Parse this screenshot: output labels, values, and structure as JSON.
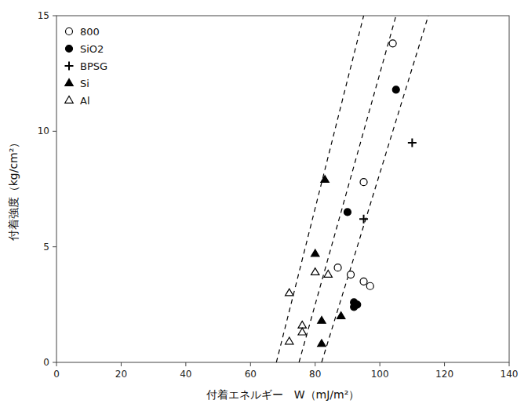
{
  "chart_data": {
    "type": "scatter",
    "xlabel": "付着エネルギー　W（mJ/m²）",
    "ylabel": "付着強度（kg/cm²）",
    "xlim": [
      0,
      140
    ],
    "ylim": [
      0,
      15
    ],
    "xticks": [
      0,
      20,
      40,
      60,
      80,
      100,
      120,
      140
    ],
    "yticks": [
      0,
      5,
      10,
      15
    ],
    "legend": "upper left",
    "grid": false,
    "series": [
      {
        "type": "line",
        "line_style": "dashed",
        "color": "black",
        "x": [
          68,
          95
        ],
        "values": [
          0,
          15
        ]
      },
      {
        "type": "line",
        "line_style": "dashed",
        "color": "black",
        "x": [
          75,
          105
        ],
        "values": [
          0,
          15
        ]
      },
      {
        "type": "line",
        "line_style": "dashed",
        "color": "black",
        "x": [
          82,
          115
        ],
        "values": [
          0,
          15
        ]
      },
      {
        "name": "800",
        "type": "scatter",
        "marker": "open-circle",
        "color": "black",
        "x": [
          95,
          104,
          87,
          91,
          95,
          97
        ],
        "values": [
          7.8,
          13.8,
          4.1,
          3.8,
          3.5,
          3.3
        ]
      },
      {
        "name": "SiO2",
        "type": "scatter",
        "marker": "circle",
        "color": "black",
        "x": [
          90,
          105,
          92,
          93,
          92
        ],
        "values": [
          6.5,
          11.8,
          2.6,
          2.5,
          2.4
        ]
      },
      {
        "name": "BPSG",
        "type": "scatter",
        "marker": "plus",
        "color": "black",
        "x": [
          95,
          110
        ],
        "values": [
          6.2,
          9.5
        ]
      },
      {
        "name": "Si",
        "type": "scatter",
        "marker": "triangle",
        "color": "black",
        "x": [
          83,
          80,
          88,
          82,
          82
        ],
        "values": [
          7.9,
          4.7,
          2.0,
          1.8,
          0.8
        ]
      },
      {
        "name": "Al",
        "type": "scatter",
        "marker": "open-triangle",
        "color": "black",
        "x": [
          72,
          76,
          76,
          72,
          80,
          84
        ],
        "values": [
          3.0,
          1.6,
          1.3,
          0.9,
          3.9,
          3.8
        ]
      }
    ]
  }
}
